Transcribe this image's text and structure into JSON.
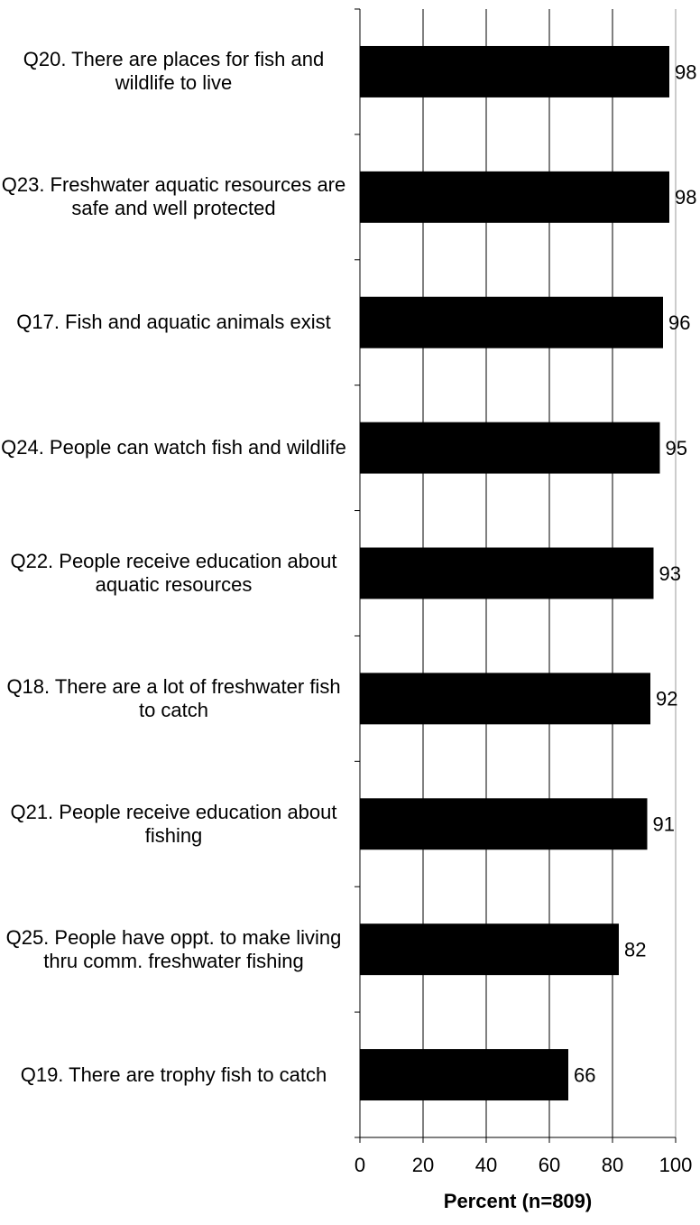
{
  "chart_data": {
    "type": "barh",
    "categories": [
      "Q20. There are places for fish and wildlife to live",
      "Q23. Freshwater aquatic resources are safe and well protected",
      "Q17. Fish and aquatic animals exist",
      "Q24. People can watch fish and wildlife",
      "Q22. People receive education about aquatic resources",
      "Q18. There are a lot of freshwater fish to catch",
      "Q21. People receive education about fishing",
      "Q25. People have oppt. to make living thru comm. freshwater fishing",
      "Q19. There are trophy fish to catch"
    ],
    "values": [
      98,
      98,
      96,
      95,
      93,
      92,
      91,
      82,
      66
    ],
    "color": "#000000",
    "xlabel": "Percent (n=809)",
    "xlim": [
      0,
      100
    ],
    "xticks": [
      0,
      20,
      40,
      60,
      80,
      100
    ],
    "grid": true
  }
}
